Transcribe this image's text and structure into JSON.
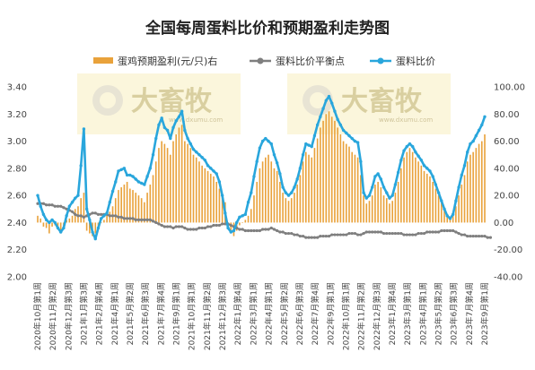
{
  "chart_data": {
    "type": "bar+line",
    "title": "全国每周蛋料比价和预期盈利走势图",
    "y_left": {
      "ylim": [
        2.0,
        3.4
      ],
      "ticks": [
        "2.00",
        "2.20",
        "2.40",
        "2.60",
        "2.80",
        "3.00",
        "3.20",
        "3.40"
      ]
    },
    "y_right": {
      "ylim": [
        -40,
        100
      ],
      "ticks": [
        "-40.00",
        "-20.00",
        "0.00",
        "20.00",
        "40.00",
        "60.00",
        "80.00",
        "100.00"
      ]
    },
    "x_tick_labels": [
      "2020年10月第1周",
      "2020年11月第2周",
      "2020年12月第3周",
      "2021年1月第3周",
      "2021年2月第4周",
      "2021年4月第1周",
      "2021年5月第2周",
      "2021年6月第3周",
      "2021年7月第4周",
      "2021年9月第1周",
      "2021年10月第1周",
      "2021年11月第2周",
      "2021年12月第3周",
      "2022年1月第4周",
      "2022年3月第1周",
      "2022年4月第1周",
      "2022年5月第2周",
      "2022年6月第3周",
      "2022年7月第4周",
      "2022年9月第1周",
      "2022年10月第1周",
      "2022年11月第2周",
      "2022年12月第3周",
      "2023年1月第4周",
      "2023年3月第1周",
      "2023年4月第1周",
      "2023年5月第2周",
      "2023年6月第3周",
      "2023年7月第4周",
      "2023年9月第1周"
    ],
    "legend_position": "top",
    "series": [
      {
        "name": "蛋鸡预期盈利(元/只)右",
        "type": "bar",
        "axis": "right",
        "color": "#e9a23b",
        "values": [
          5,
          3,
          -3,
          -4,
          -8,
          -3,
          -2,
          -5,
          -8,
          -3,
          2,
          3,
          5,
          10,
          12,
          18,
          22,
          -6,
          -8,
          -10,
          -8,
          -4,
          0,
          2,
          5,
          8,
          12,
          18,
          24,
          26,
          28,
          30,
          25,
          24,
          22,
          20,
          18,
          15,
          22,
          28,
          35,
          45,
          55,
          60,
          58,
          55,
          50,
          60,
          65,
          70,
          72,
          60,
          58,
          55,
          50,
          48,
          45,
          42,
          40,
          38,
          36,
          34,
          30,
          25,
          20,
          15,
          -5,
          -8,
          -10,
          -6,
          -2,
          0,
          2,
          5,
          10,
          20,
          30,
          40,
          45,
          48,
          50,
          45,
          40,
          38,
          30,
          22,
          18,
          16,
          18,
          22,
          28,
          35,
          45,
          52,
          50,
          48,
          55,
          62,
          70,
          75,
          80,
          82,
          78,
          75,
          70,
          65,
          60,
          58,
          56,
          52,
          50,
          48,
          35,
          20,
          14,
          16,
          20,
          28,
          30,
          26,
          20,
          18,
          14,
          16,
          22,
          30,
          40,
          48,
          52,
          55,
          52,
          48,
          45,
          42,
          38,
          36,
          34,
          30,
          25,
          20,
          15,
          10,
          5,
          3,
          5,
          12,
          20,
          28,
          35,
          45,
          50,
          52,
          55,
          58,
          60,
          65
        ]
      },
      {
        "name": "蛋料比价平衡点",
        "type": "line",
        "axis": "left",
        "color": "#7f7f7f",
        "values": [
          2.54,
          2.54,
          2.54,
          2.53,
          2.53,
          2.53,
          2.52,
          2.52,
          2.52,
          2.51,
          2.5,
          2.49,
          2.48,
          2.46,
          2.45,
          2.45,
          2.44,
          2.45,
          2.46,
          2.47,
          2.47,
          2.46,
          2.46,
          2.46,
          2.46,
          2.45,
          2.45,
          2.45,
          2.44,
          2.44,
          2.43,
          2.43,
          2.43,
          2.43,
          2.42,
          2.42,
          2.42,
          2.42,
          2.42,
          2.42,
          2.41,
          2.4,
          2.39,
          2.38,
          2.37,
          2.37,
          2.37,
          2.36,
          2.37,
          2.37,
          2.37,
          2.36,
          2.35,
          2.35,
          2.35,
          2.35,
          2.36,
          2.36,
          2.36,
          2.37,
          2.37,
          2.38,
          2.38,
          2.38,
          2.39,
          2.39,
          2.39,
          2.38,
          2.37,
          2.36,
          2.35,
          2.35,
          2.34,
          2.34,
          2.34,
          2.34,
          2.34,
          2.34,
          2.35,
          2.35,
          2.35,
          2.36,
          2.35,
          2.34,
          2.33,
          2.33,
          2.32,
          2.32,
          2.32,
          2.31,
          2.31,
          2.3,
          2.3,
          2.29,
          2.29,
          2.29,
          2.29,
          2.29,
          2.3,
          2.3,
          2.3,
          2.3,
          2.31,
          2.31,
          2.31,
          2.31,
          2.31,
          2.31,
          2.32,
          2.32,
          2.32,
          2.31,
          2.31,
          2.32,
          2.33,
          2.33,
          2.33,
          2.33,
          2.33,
          2.33,
          2.32,
          2.32,
          2.32,
          2.32,
          2.32,
          2.32,
          2.32,
          2.31,
          2.31,
          2.31,
          2.31,
          2.31,
          2.32,
          2.32,
          2.32,
          2.33,
          2.33,
          2.33,
          2.33,
          2.33,
          2.34,
          2.34,
          2.34,
          2.34,
          2.34,
          2.33,
          2.32,
          2.31,
          2.31,
          2.3,
          2.3,
          2.3,
          2.3,
          2.3,
          2.3,
          2.3,
          2.29,
          2.29
        ]
      },
      {
        "name": "蛋料比价",
        "type": "line",
        "axis": "left",
        "color": "#29a6dc",
        "values": [
          2.6,
          2.52,
          2.46,
          2.42,
          2.4,
          2.42,
          2.4,
          2.36,
          2.33,
          2.36,
          2.45,
          2.52,
          2.55,
          2.58,
          2.6,
          2.82,
          3.09,
          2.5,
          2.42,
          2.33,
          2.28,
          2.36,
          2.43,
          2.45,
          2.47,
          2.55,
          2.63,
          2.7,
          2.78,
          2.79,
          2.8,
          2.75,
          2.75,
          2.74,
          2.72,
          2.7,
          2.69,
          2.68,
          2.74,
          2.8,
          2.9,
          3.02,
          3.12,
          3.17,
          3.1,
          3.08,
          3.02,
          3.1,
          3.15,
          3.18,
          3.22,
          3.08,
          3.02,
          2.98,
          2.94,
          2.92,
          2.9,
          2.88,
          2.86,
          2.82,
          2.8,
          2.78,
          2.76,
          2.7,
          2.6,
          2.47,
          2.36,
          2.33,
          2.34,
          2.4,
          2.44,
          2.45,
          2.46,
          2.55,
          2.62,
          2.74,
          2.85,
          2.95,
          3.0,
          3.02,
          3.0,
          2.98,
          2.9,
          2.84,
          2.76,
          2.66,
          2.62,
          2.6,
          2.62,
          2.66,
          2.72,
          2.8,
          2.9,
          2.98,
          2.97,
          2.96,
          3.04,
          3.12,
          3.18,
          3.24,
          3.3,
          3.33,
          3.28,
          3.22,
          3.16,
          3.12,
          3.08,
          3.06,
          3.04,
          3.02,
          3.0,
          2.99,
          2.85,
          2.62,
          2.58,
          2.6,
          2.66,
          2.74,
          2.76,
          2.72,
          2.66,
          2.62,
          2.58,
          2.6,
          2.68,
          2.77,
          2.86,
          2.93,
          2.96,
          2.98,
          2.96,
          2.92,
          2.89,
          2.86,
          2.82,
          2.8,
          2.78,
          2.74,
          2.68,
          2.62,
          2.56,
          2.5,
          2.45,
          2.43,
          2.46,
          2.56,
          2.66,
          2.75,
          2.82,
          2.92,
          2.98,
          3.0,
          3.04,
          3.08,
          3.12,
          3.18
        ]
      }
    ]
  },
  "watermarks": [
    {
      "text": "大畜牧",
      "sub": "www.dxumu.com"
    },
    {
      "text": "大畜牧",
      "sub": "www.dxumu.com"
    }
  ]
}
